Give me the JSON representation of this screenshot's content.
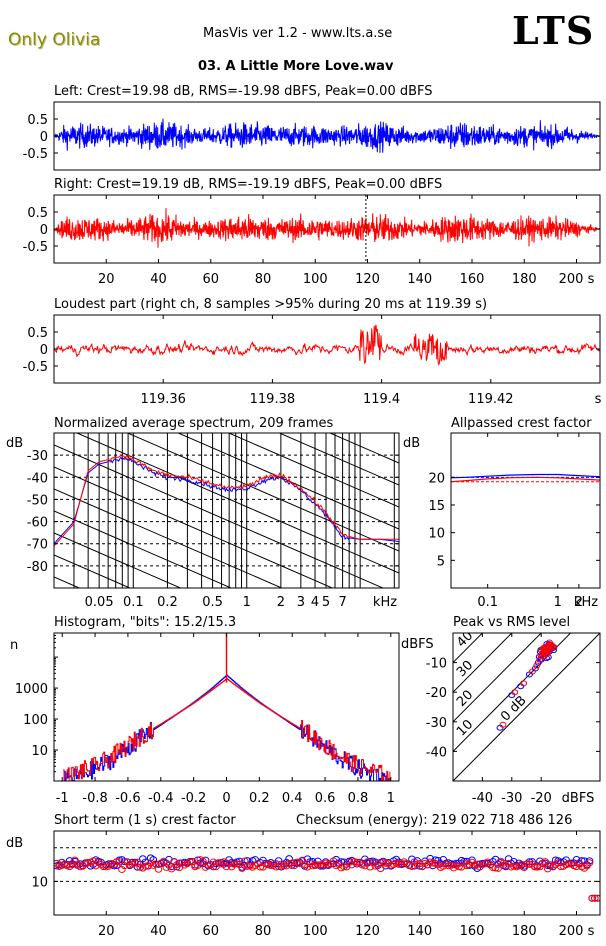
{
  "header": {
    "album": "Only Olivia",
    "app": "MasVis ver 1.2 - www.lts.a.se",
    "logo": "LTS",
    "file": "03. A Little More Love.wav"
  },
  "colors": {
    "left": "#0000ff",
    "right": "#ff0000",
    "album_text": "#8b8b00"
  },
  "chart_data": [
    {
      "type": "line",
      "id": "left_waveform",
      "title": "Left: Crest=19.98 dB, RMS=-19.98 dBFS, Peak=0.00 dBFS",
      "yticks": [
        "0.5",
        "0",
        "-0.5"
      ],
      "ylim": [
        -1,
        1
      ],
      "xlim": [
        0,
        209
      ],
      "peak_dBFS": 0.0,
      "rms_dBFS": -19.98,
      "crest_dB": 19.98
    },
    {
      "type": "line",
      "id": "right_waveform",
      "title": "Right: Crest=19.19 dB, RMS=-19.19 dBFS, Peak=0.00 dBFS",
      "yticks": [
        "0.5",
        "0",
        "-0.5"
      ],
      "ylim": [
        -1,
        1
      ],
      "xlim": [
        0,
        209
      ],
      "xticks": [
        "20",
        "40",
        "60",
        "80",
        "100",
        "120",
        "140",
        "160",
        "180",
        "200 s"
      ],
      "peak_dBFS": 0.0,
      "rms_dBFS": -19.19,
      "crest_dB": 19.19
    },
    {
      "type": "line",
      "id": "loudest_part",
      "title": "Loudest part (right ch, 8 samples >95% during 20 ms at 119.39 s)",
      "yticks": [
        "0.5",
        "0",
        "-0.5"
      ],
      "ylim": [
        -1,
        1
      ],
      "xticks": [
        "119.36",
        "119.38",
        "119.4",
        "119.42",
        "s"
      ],
      "xlim": [
        119.34,
        119.44
      ]
    },
    {
      "type": "line",
      "id": "spectrum",
      "title": "Normalized average spectrum, 209 frames",
      "ylabel": "dB",
      "xlabel": "kHz",
      "yticks": [
        "-30",
        "-40",
        "-50",
        "-60",
        "-70",
        "-80"
      ],
      "xticks": [
        "0.05",
        "0.1",
        "0.2",
        "0.5",
        "1",
        "2",
        "3",
        "4",
        "5",
        "7",
        "kHz"
      ],
      "ylim": [
        -90,
        -20
      ],
      "xlim": [
        0.02,
        22
      ],
      "x": [
        0.02,
        0.03,
        0.04,
        0.05,
        0.06,
        0.08,
        0.1,
        0.15,
        0.2,
        0.3,
        0.5,
        0.7,
        1,
        1.5,
        2,
        3,
        4,
        5,
        7,
        10,
        15,
        22
      ],
      "series": [
        {
          "name": "Left",
          "color": "#0000ff",
          "values": [
            -70,
            -60,
            -38,
            -34,
            -33,
            -31,
            -33,
            -38,
            -40,
            -41,
            -44,
            -46,
            -45,
            -41,
            -40,
            -46,
            -52,
            -57,
            -67,
            -68,
            -68,
            -69
          ]
        },
        {
          "name": "Right",
          "color": "#ff0000",
          "values": [
            -71,
            -61,
            -37,
            -33,
            -32,
            -30,
            -32,
            -37,
            -39,
            -40,
            -43,
            -45,
            -44,
            -40,
            -39,
            -45,
            -51,
            -56,
            -66,
            -68,
            -68,
            -68
          ]
        }
      ]
    },
    {
      "type": "line",
      "id": "allpassed_crest",
      "title": "Allpassed crest factor",
      "ylabel": "dB",
      "xlabel": "kHz",
      "yticks": [
        "20",
        "15",
        "10",
        "5"
      ],
      "xticks": [
        "0.1",
        "1",
        "2",
        "kHz"
      ],
      "ylim": [
        0,
        28
      ],
      "xlim": [
        0.03,
        4
      ],
      "x": [
        0.03,
        0.05,
        0.1,
        0.2,
        0.5,
        1,
        2,
        4
      ],
      "series": [
        {
          "name": "Left",
          "color": "#0000ff",
          "values": [
            19.9,
            20.0,
            20.2,
            20.4,
            20.5,
            20.5,
            20.3,
            20.1
          ]
        },
        {
          "name": "Right",
          "color": "#ff0000",
          "values": [
            19.2,
            19.4,
            19.7,
            19.9,
            20.0,
            19.9,
            19.7,
            19.5
          ]
        }
      ],
      "reference": {
        "Left": 19.98,
        "Right": 19.19
      }
    },
    {
      "type": "line",
      "id": "histogram",
      "title": "Histogram, \"bits\": 15.2/15.3",
      "ylabel": "n",
      "yscale": "log",
      "yticks": [
        "1000",
        "100",
        "10"
      ],
      "ylim": [
        1,
        60000
      ],
      "xticks": [
        "-1",
        "-0.8",
        "-0.6",
        "-0.4",
        "-0.2",
        "0",
        "0.2",
        "0.4",
        "0.6",
        "0.8",
        "1"
      ],
      "xlim": [
        -1.05,
        1.05
      ],
      "x": [
        -1,
        -0.9,
        -0.8,
        -0.7,
        -0.6,
        -0.5,
        -0.4,
        -0.3,
        -0.2,
        -0.1,
        0,
        0.1,
        0.2,
        0.3,
        0.4,
        0.5,
        0.6,
        0.7,
        0.8,
        0.9,
        1
      ],
      "series": [
        {
          "name": "Left",
          "color": "#0000ff",
          "values": [
            1,
            1.5,
            2.5,
            5,
            12,
            30,
            65,
            150,
            350,
            900,
            2600,
            900,
            350,
            150,
            65,
            30,
            12,
            5,
            2.5,
            1.5,
            1
          ]
        },
        {
          "name": "Right",
          "color": "#ff0000",
          "values": [
            1.2,
            2,
            3,
            6,
            14,
            34,
            70,
            150,
            330,
            800,
            2000,
            800,
            330,
            150,
            70,
            34,
            14,
            6,
            3,
            2,
            1.2
          ]
        }
      ],
      "bits": {
        "Left": 15.2,
        "Right": 15.3
      }
    },
    {
      "type": "scatter",
      "id": "peak_vs_rms",
      "title": "Peak vs RMS level",
      "ylabel": "dBFS",
      "xlabel": "dBFS",
      "yticks": [
        "-10",
        "-20",
        "-30",
        "-40"
      ],
      "xticks": [
        "-40",
        "-30",
        "-20",
        "dBFS"
      ],
      "ylim": [
        -50,
        0
      ],
      "xlim": [
        -50,
        0
      ],
      "diagonals": [
        "40",
        "30",
        "20",
        "10",
        "0 dB"
      ],
      "series": [
        {
          "name": "Left",
          "color": "#0000ff",
          "x": [
            -34,
            -30,
            -27,
            -24,
            -22,
            -21,
            -20,
            -19.5,
            -19,
            -18.5,
            -18,
            -17.5,
            -17
          ],
          "y": [
            -32,
            -21,
            -18,
            -14,
            -12,
            -10,
            -9,
            -8,
            -7,
            -7,
            -6,
            -5,
            -5
          ]
        },
        {
          "name": "Right",
          "color": "#ff0000",
          "x": [
            -33,
            -29,
            -26,
            -23,
            -21.5,
            -20.5,
            -19.5,
            -19,
            -18.5,
            -18,
            -17.5,
            -17,
            -16.5
          ],
          "y": [
            -31,
            -20,
            -17,
            -13,
            -11,
            -9,
            -8,
            -7,
            -6,
            -6,
            -5,
            -4,
            -4
          ]
        }
      ]
    },
    {
      "type": "scatter",
      "id": "short_term_crest",
      "title": "Short term (1 s) crest factor",
      "checksum": "Checksum (energy):  219 022 718 486 126",
      "ylabel": "dB",
      "yticks": [
        "10"
      ],
      "ylim": [
        0,
        25
      ],
      "xlim": [
        0,
        209
      ],
      "xticks": [
        "20",
        "40",
        "60",
        "80",
        "100",
        "120",
        "140",
        "160",
        "180",
        "200 s"
      ],
      "series": [
        {
          "name": "Left",
          "color": "#0000ff",
          "mean": 15.5
        },
        {
          "name": "Right",
          "color": "#ff0000",
          "mean": 15.0
        }
      ]
    }
  ]
}
